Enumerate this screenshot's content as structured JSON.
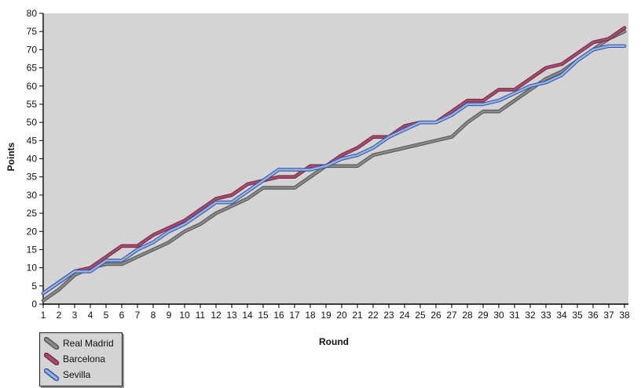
{
  "chart_data": {
    "type": "line",
    "title": "",
    "xlabel": "Round",
    "ylabel": "Points",
    "x": [
      1,
      2,
      3,
      4,
      5,
      6,
      7,
      8,
      9,
      10,
      11,
      12,
      13,
      14,
      15,
      16,
      17,
      18,
      19,
      20,
      21,
      22,
      23,
      24,
      25,
      26,
      27,
      28,
      29,
      30,
      31,
      32,
      33,
      34,
      35,
      36,
      37,
      38
    ],
    "y_ticks": [
      0,
      5,
      10,
      15,
      20,
      25,
      30,
      35,
      40,
      45,
      50,
      55,
      60,
      65,
      70,
      75,
      80
    ],
    "ylim": [
      0,
      80
    ],
    "grid": false,
    "legend_position": "bottom-left",
    "plot_bg_color": "#d4d4d4",
    "axis_color": "#000000",
    "series": [
      {
        "name": "Real Madrid",
        "color": "#8a8a8a",
        "border_color": "#585858",
        "values": [
          1,
          4,
          8,
          10,
          11,
          11,
          13,
          15,
          17,
          20,
          22,
          25,
          27,
          29,
          32,
          32,
          32,
          35,
          38,
          38,
          38,
          41,
          42,
          43,
          44,
          45,
          46,
          50,
          53,
          53,
          56,
          59,
          62,
          64,
          67,
          70,
          73,
          75
        ]
      },
      {
        "name": "Barcelona",
        "color": "#a34e6e",
        "border_color": "#7d2a4b",
        "values": [
          3,
          6,
          9,
          10,
          13,
          16,
          16,
          19,
          21,
          23,
          26,
          29,
          30,
          33,
          34,
          35,
          35,
          38,
          38,
          41,
          43,
          46,
          46,
          49,
          50,
          50,
          53,
          56,
          56,
          59,
          59,
          62,
          65,
          66,
          69,
          72,
          73,
          76
        ]
      },
      {
        "name": "Sevilla",
        "color": "#92b4e4",
        "border_color": "#3f55a5",
        "values": [
          3,
          6,
          9,
          9,
          12,
          12,
          15,
          17,
          20,
          22,
          25,
          28,
          28,
          31,
          34,
          37,
          37,
          37,
          38,
          40,
          41,
          43,
          46,
          48,
          50,
          50,
          52,
          55,
          55,
          56,
          58,
          60,
          61,
          63,
          67,
          70,
          71,
          71
        ]
      }
    ]
  }
}
